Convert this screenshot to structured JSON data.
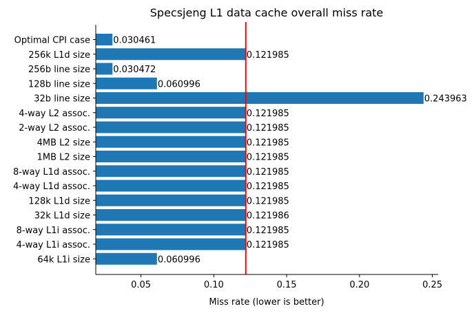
{
  "chart_data": {
    "type": "bar",
    "orientation": "horizontal",
    "title": "Specsjeng L1 data cache overall miss rate",
    "xlabel": "Miss rate (lower is better)",
    "ylabel": "",
    "xlim": [
      0.019,
      0.254
    ],
    "xticks": [
      0.05,
      0.1,
      0.15,
      0.2,
      0.25
    ],
    "xtick_labels": [
      "0.05",
      "0.10",
      "0.15",
      "0.20",
      "0.25"
    ],
    "bar_color": "#1f77b4",
    "reference_line": {
      "value": 0.121985,
      "color": "#ff0000"
    },
    "grid": false,
    "categories": [
      "Optimal CPI case",
      "256k L1d size",
      "256b line size",
      "128b line size",
      "32b line size",
      "4-way L2 assoc.",
      "2-way L2 assoc.",
      "4MB L2 size",
      "1MB L2 size",
      "8-way L1d assoc.",
      "4-way L1d assoc.",
      "128k L1d size",
      "32k L1d size",
      "8-way L1i assoc.",
      "4-way L1i assoc.",
      "64k L1i size"
    ],
    "values": [
      0.030461,
      0.121985,
      0.030472,
      0.060996,
      0.243963,
      0.121985,
      0.121985,
      0.121985,
      0.121985,
      0.121985,
      0.121985,
      0.121985,
      0.121986,
      0.121985,
      0.121985,
      0.060996
    ],
    "value_labels": [
      "0.030461",
      "0.121985",
      "0.030472",
      "0.060996",
      "0.243963",
      "0.121985",
      "0.121985",
      "0.121985",
      "0.121985",
      "0.121985",
      "0.121985",
      "0.121985",
      "0.121986",
      "0.121985",
      "0.121985",
      "0.060996"
    ]
  }
}
